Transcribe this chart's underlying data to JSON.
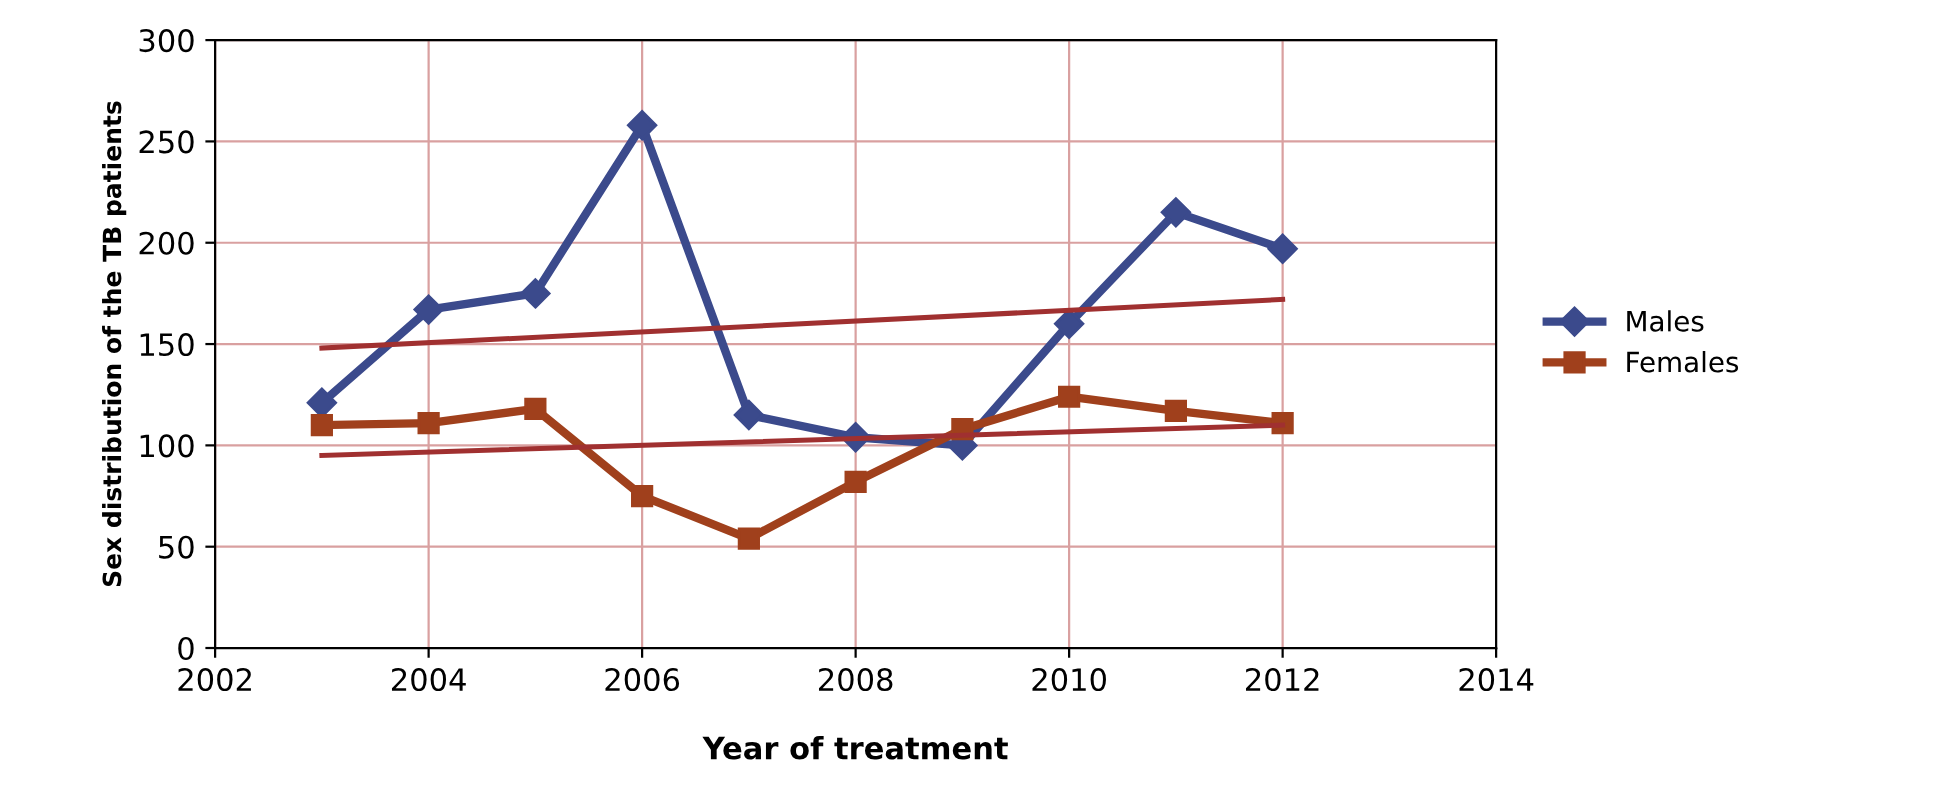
{
  "chart_data": {
    "type": "line",
    "xlabel": "Year of treatment",
    "ylabel": "Sex distribution of the TB patients",
    "x": [
      2003,
      2004,
      2005,
      2006,
      2007,
      2008,
      2009,
      2010,
      2011,
      2012
    ],
    "series": [
      {
        "name": "Males",
        "color": "#3b4a8c",
        "marker": "diamond",
        "values": [
          121,
          167,
          175,
          258,
          115,
          104,
          100,
          160,
          215,
          197
        ]
      },
      {
        "name": "Females",
        "color": "#a0401c",
        "marker": "square",
        "values": [
          110,
          111,
          118,
          75,
          54,
          82,
          108,
          124,
          117,
          111
        ]
      },
      {
        "type": "line",
        "color": "#a03030",
        "marker": "none",
        "values": [
          148,
          null,
          null,
          null,
          null,
          null,
          null,
          null,
          null,
          172
        ]
      },
      {
        "type": "line",
        "color": "#a03030",
        "marker": "none",
        "values": [
          95,
          null,
          null,
          null,
          null,
          null,
          null,
          null,
          null,
          110
        ]
      }
    ],
    "xlim": [
      2002,
      2014
    ],
    "xticks": [
      2002,
      2004,
      2006,
      2008,
      2010,
      2012,
      2014
    ],
    "ylim": [
      0,
      300
    ],
    "yticks": [
      0,
      50,
      100,
      150,
      200,
      250,
      300
    ],
    "grid": true,
    "legend": "right",
    "line_style": "solid"
  }
}
